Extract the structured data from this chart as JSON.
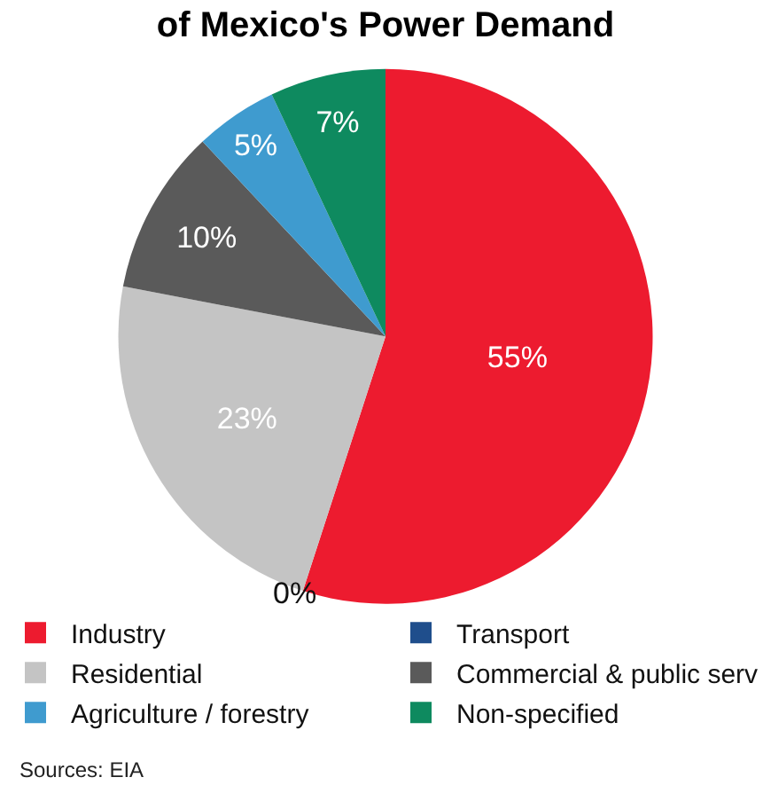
{
  "chart_data": {
    "type": "pie",
    "title": "of Mexico's Power Demand",
    "categories": [
      "Industry",
      "Transport",
      "Residential",
      "Commercial & public serv",
      "Agriculture / forestry",
      "Non-specified"
    ],
    "values": [
      55,
      0,
      23,
      10,
      5,
      7
    ],
    "colors": [
      "#ed1b2f",
      "#1f4e8c",
      "#c4c4c4",
      "#5a5a5a",
      "#3f9bcf",
      "#0e8a5f"
    ],
    "value_labels": [
      "55%",
      "0%",
      "23%",
      "10%",
      "5%",
      "7%"
    ],
    "legend": "bottom",
    "annotations": [
      "Sources: EIA"
    ]
  }
}
